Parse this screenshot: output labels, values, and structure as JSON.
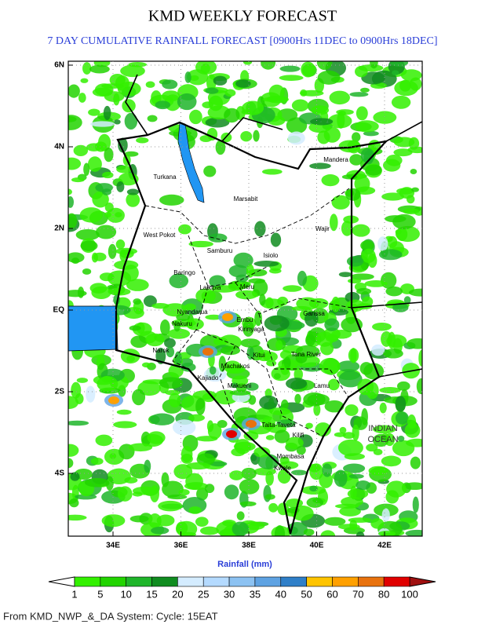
{
  "header": {
    "title": "KMD WEEKLY FORECAST",
    "subtitle": "7 DAY CUMULATIVE RAINFALL FORECAST [0900Hrs 11DEC to 0900Hrs 18DEC]"
  },
  "map": {
    "lon_ticks": [
      {
        "value": 34,
        "label": "34E"
      },
      {
        "value": 36,
        "label": "36E"
      },
      {
        "value": 38,
        "label": "38E"
      },
      {
        "value": 40,
        "label": "40E"
      },
      {
        "value": 42,
        "label": "42E"
      }
    ],
    "lat_ticks": [
      {
        "value": 6,
        "label": "6N"
      },
      {
        "value": 4,
        "label": "4N"
      },
      {
        "value": 2,
        "label": "2N"
      },
      {
        "value": 0,
        "label": "EQ"
      },
      {
        "value": -2,
        "label": "2S"
      },
      {
        "value": -4,
        "label": "4S"
      }
    ],
    "places": [
      "Mandera",
      "Turkana",
      "Marsabit",
      "Wajir",
      "West Pokot",
      "Samburu",
      "Isiolo",
      "Baringo",
      "Laikipia",
      "Meru",
      "Nyandarua",
      "Nakuru",
      "Embu",
      "Kirinyaga",
      "Garissa",
      "Narok",
      "Kitui",
      "Machakos",
      "Kajiado",
      "Makueni",
      "Tana River",
      "Lamu",
      "Taita-Taveta",
      "Kilifi",
      "Mombasa",
      "Kwale"
    ],
    "ocean": [
      "INDIAN",
      "OCEAN"
    ]
  },
  "colorbar": {
    "title": "Rainfall (mm)",
    "levels": [
      1,
      5,
      10,
      15,
      20,
      25,
      30,
      35,
      40,
      50,
      60,
      70,
      80,
      100
    ],
    "colors": [
      "#33f000",
      "#22d400",
      "#1fb52a",
      "#108c20",
      "#d4ecff",
      "#b4daff",
      "#8cc2f2",
      "#5ea2e2",
      "#2f7fc8",
      "#ffc400",
      "#ffa000",
      "#e8720e",
      "#e00000"
    ],
    "under_color": "#ffffff",
    "over_color": "#a01010"
  },
  "footer": "From KMD_NWP_&_DA System: Cycle: 15EAT"
}
